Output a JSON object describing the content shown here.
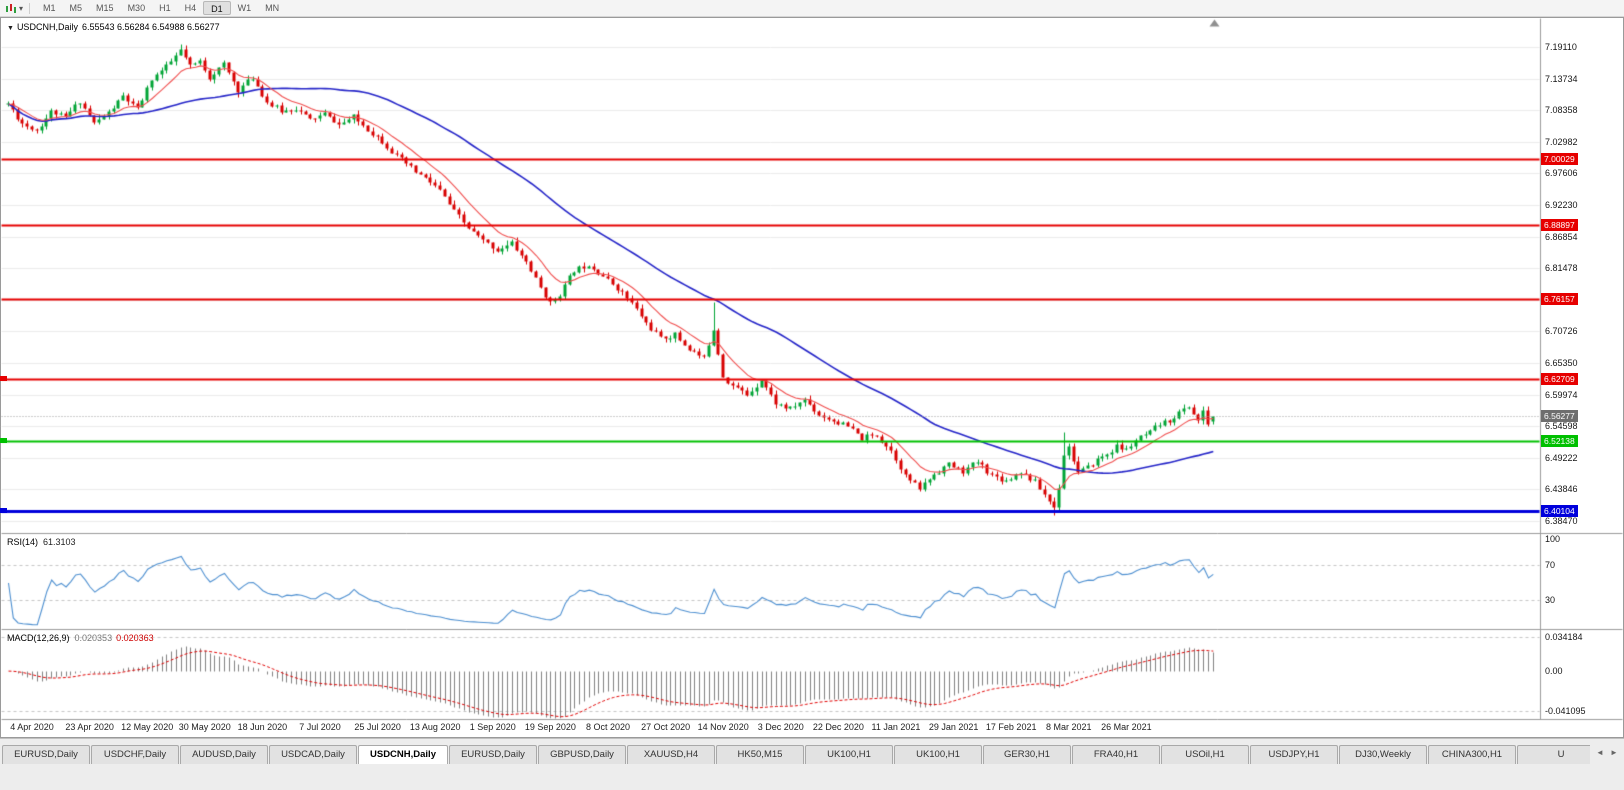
{
  "toolbar": {
    "caret_icon": "▾",
    "timeframes": [
      {
        "label": "M1",
        "active": false
      },
      {
        "label": "M5",
        "active": false
      },
      {
        "label": "M15",
        "active": false
      },
      {
        "label": "M30",
        "active": false
      },
      {
        "label": "H1",
        "active": false
      },
      {
        "label": "H4",
        "active": false
      },
      {
        "label": "D1",
        "active": true
      },
      {
        "label": "W1",
        "active": false
      },
      {
        "label": "MN",
        "active": false
      }
    ]
  },
  "chart": {
    "collapse_icon": "▼",
    "symbol_title": "USDCNH,Daily",
    "ohlc": "6.55543 6.56284 6.54988 6.56277",
    "price_axis_labels": [
      "7.19110",
      "7.13734",
      "7.08358",
      "7.02982",
      "6.97606",
      "6.92230",
      "6.86854",
      "6.81478",
      "6.76102",
      "6.70726",
      "6.65350",
      "6.59974",
      "6.54598",
      "6.49222",
      "6.43846",
      "6.38470"
    ],
    "current_price": {
      "label": "6.56277",
      "price": 6.56277,
      "color": "#6e6e6e"
    },
    "hlines": [
      {
        "price": 7.00029,
        "label": "7.00029",
        "color": "#e60000",
        "width": 2,
        "left_marker": false
      },
      {
        "price": 6.88897,
        "label": "6.88897",
        "color": "#e60000",
        "width": 2,
        "left_marker": false
      },
      {
        "price": 6.76157,
        "label": "6.76157",
        "color": "#e60000",
        "width": 2,
        "left_marker": false
      },
      {
        "price": 6.62709,
        "label": "6.62709",
        "color": "#e60000",
        "width": 2,
        "left_marker": true
      },
      {
        "price": 6.52138,
        "label": "6.52138",
        "color": "#00c000",
        "width": 2,
        "left_marker": true
      },
      {
        "price": 6.40104,
        "label": "6.40104",
        "color": "#0000dc",
        "width": 3,
        "left_marker": true
      }
    ],
    "date_labels": [
      "4 Apr 2020",
      "23 Apr 2020",
      "12 May 2020",
      "30 May 2020",
      "18 Jun 2020",
      "7 Jul 2020",
      "25 Jul 2020",
      "13 Aug 2020",
      "1 Sep 2020",
      "19 Sep 2020",
      "8 Oct 2020",
      "27 Oct 2020",
      "14 Nov 2020",
      "3 Dec 2020",
      "22 Dec 2020",
      "11 Jan 2021",
      "29 Jan 2021",
      "17 Feb 2021",
      "8 Mar 2021",
      "26 Mar 2021"
    ]
  },
  "rsi": {
    "label": "RSI(14)",
    "value": "61.3103",
    "axis": [
      {
        "text": "100",
        "value": 100
      },
      {
        "text": "70",
        "value": 70
      },
      {
        "text": "30",
        "value": 30
      }
    ],
    "dashed_levels": [
      70,
      30
    ]
  },
  "macd": {
    "label": "MACD(12,26,9)",
    "value_main": "0.020353",
    "value_signal": "0.020363",
    "axis": [
      {
        "text": "0.034184",
        "value": 0.034184
      },
      {
        "text": "0.00",
        "value": 0
      },
      {
        "text": "-0.041095",
        "value": -0.041095
      }
    ]
  },
  "tabs": {
    "scroll_left": "◄",
    "scroll_right": "►",
    "items": [
      {
        "label": "EURUSD,Daily",
        "active": false
      },
      {
        "label": "USDCHF,Daily",
        "active": false
      },
      {
        "label": "AUDUSD,Daily",
        "active": false
      },
      {
        "label": "USDCAD,Daily",
        "active": false
      },
      {
        "label": "USDCNH,Daily",
        "active": true
      },
      {
        "label": "EURUSD,Daily",
        "active": false
      },
      {
        "label": "GBPUSD,Daily",
        "active": false
      },
      {
        "label": "XAUUSD,H4",
        "active": false
      },
      {
        "label": "HK50,M15",
        "active": false
      },
      {
        "label": "UK100,H1",
        "active": false
      },
      {
        "label": "UK100,H1",
        "active": false
      },
      {
        "label": "GER30,H1",
        "active": false
      },
      {
        "label": "FRA40,H1",
        "active": false
      },
      {
        "label": "USOil,H1",
        "active": false
      },
      {
        "label": "USDJPY,H1",
        "active": false
      },
      {
        "label": "DJ30,Weekly",
        "active": false
      },
      {
        "label": "CHINA300,H1",
        "active": false
      },
      {
        "label": "U",
        "active": false
      }
    ]
  },
  "colors": {
    "candle_up": "#00a435",
    "candle_down": "#d80000",
    "ma_fast": "#f04e4e",
    "ma_slow": "#2525c8",
    "rsi_line": "#4d8fd0",
    "macd_hist": "#808080",
    "macd_signal": "#e00000",
    "grid": "#ebebeb",
    "dashed_level": "#c4c4c4",
    "bid_line": "#999999"
  },
  "chart_data": {
    "type": "candlestick",
    "symbol": "USDCNH",
    "timeframe": "Daily",
    "n": 252,
    "x_start_label": "4 Apr 2020",
    "x_end_label": "26 Mar 2021",
    "price_range": [
      6.3847,
      7.1911
    ],
    "anchors": [
      [
        0,
        7.095
      ],
      [
        3,
        7.062
      ],
      [
        6,
        7.05
      ],
      [
        9,
        7.082
      ],
      [
        12,
        7.072
      ],
      [
        15,
        7.1
      ],
      [
        18,
        7.062
      ],
      [
        21,
        7.08
      ],
      [
        24,
        7.108
      ],
      [
        27,
        7.085
      ],
      [
        30,
        7.138
      ],
      [
        33,
        7.158
      ],
      [
        36,
        7.186
      ],
      [
        38,
        7.158
      ],
      [
        40,
        7.168
      ],
      [
        42,
        7.14
      ],
      [
        45,
        7.162
      ],
      [
        48,
        7.118
      ],
      [
        51,
        7.14
      ],
      [
        54,
        7.098
      ],
      [
        57,
        7.082
      ],
      [
        60,
        7.088
      ],
      [
        63,
        7.068
      ],
      [
        66,
        7.078
      ],
      [
        69,
        7.06
      ],
      [
        72,
        7.072
      ],
      [
        75,
        7.052
      ],
      [
        78,
        7.032
      ],
      [
        81,
        7.006
      ],
      [
        84,
        6.986
      ],
      [
        87,
        6.968
      ],
      [
        90,
        6.948
      ],
      [
        93,
        6.912
      ],
      [
        96,
        6.884
      ],
      [
        99,
        6.862
      ],
      [
        102,
        6.846
      ],
      [
        105,
        6.858
      ],
      [
        108,
        6.826
      ],
      [
        111,
        6.782
      ],
      [
        113,
        6.756
      ],
      [
        115,
        6.772
      ],
      [
        118,
        6.812
      ],
      [
        121,
        6.822
      ],
      [
        124,
        6.802
      ],
      [
        127,
        6.782
      ],
      [
        130,
        6.756
      ],
      [
        133,
        6.722
      ],
      [
        136,
        6.696
      ],
      [
        139,
        6.702
      ],
      [
        142,
        6.678
      ],
      [
        145,
        6.662
      ],
      [
        147,
        6.712
      ],
      [
        149,
        6.632
      ],
      [
        151,
        6.616
      ],
      [
        154,
        6.6
      ],
      [
        157,
        6.626
      ],
      [
        160,
        6.586
      ],
      [
        163,
        6.576
      ],
      [
        166,
        6.592
      ],
      [
        169,
        6.566
      ],
      [
        172,
        6.556
      ],
      [
        175,
        6.546
      ],
      [
        178,
        6.526
      ],
      [
        181,
        6.532
      ],
      [
        184,
        6.506
      ],
      [
        187,
        6.462
      ],
      [
        190,
        6.44
      ],
      [
        193,
        6.466
      ],
      [
        196,
        6.482
      ],
      [
        199,
        6.47
      ],
      [
        202,
        6.486
      ],
      [
        205,
        6.464
      ],
      [
        208,
        6.454
      ],
      [
        211,
        6.47
      ],
      [
        214,
        6.452
      ],
      [
        216,
        6.43
      ],
      [
        218,
        6.408
      ],
      [
        219,
        6.444
      ],
      [
        220,
        6.5
      ],
      [
        221,
        6.512
      ],
      [
        223,
        6.468
      ],
      [
        225,
        6.476
      ],
      [
        227,
        6.49
      ],
      [
        229,
        6.5
      ],
      [
        231,
        6.512
      ],
      [
        233,
        6.506
      ],
      [
        235,
        6.522
      ],
      [
        238,
        6.536
      ],
      [
        240,
        6.55
      ],
      [
        242,
        6.556
      ],
      [
        244,
        6.57
      ],
      [
        246,
        6.58
      ],
      [
        248,
        6.556
      ],
      [
        249,
        6.57
      ],
      [
        250,
        6.552
      ],
      [
        251,
        6.5628
      ]
    ],
    "overrides": [
      {
        "i": 36,
        "h": 7.196
      },
      {
        "i": 147,
        "h": 6.7575
      },
      {
        "i": 218,
        "l": 6.3955
      },
      {
        "i": 220,
        "h": 6.5355
      }
    ],
    "last_candle": {
      "o": 6.55543,
      "h": 6.56284,
      "l": 6.54988,
      "c": 6.56277
    },
    "seed": 11,
    "jitter": 0.0045,
    "wick": 0.0075,
    "ma_fast_period": 10,
    "ma_slow_period": 45,
    "rsi_period": 14,
    "macd_periods": [
      12,
      26,
      9
    ]
  }
}
